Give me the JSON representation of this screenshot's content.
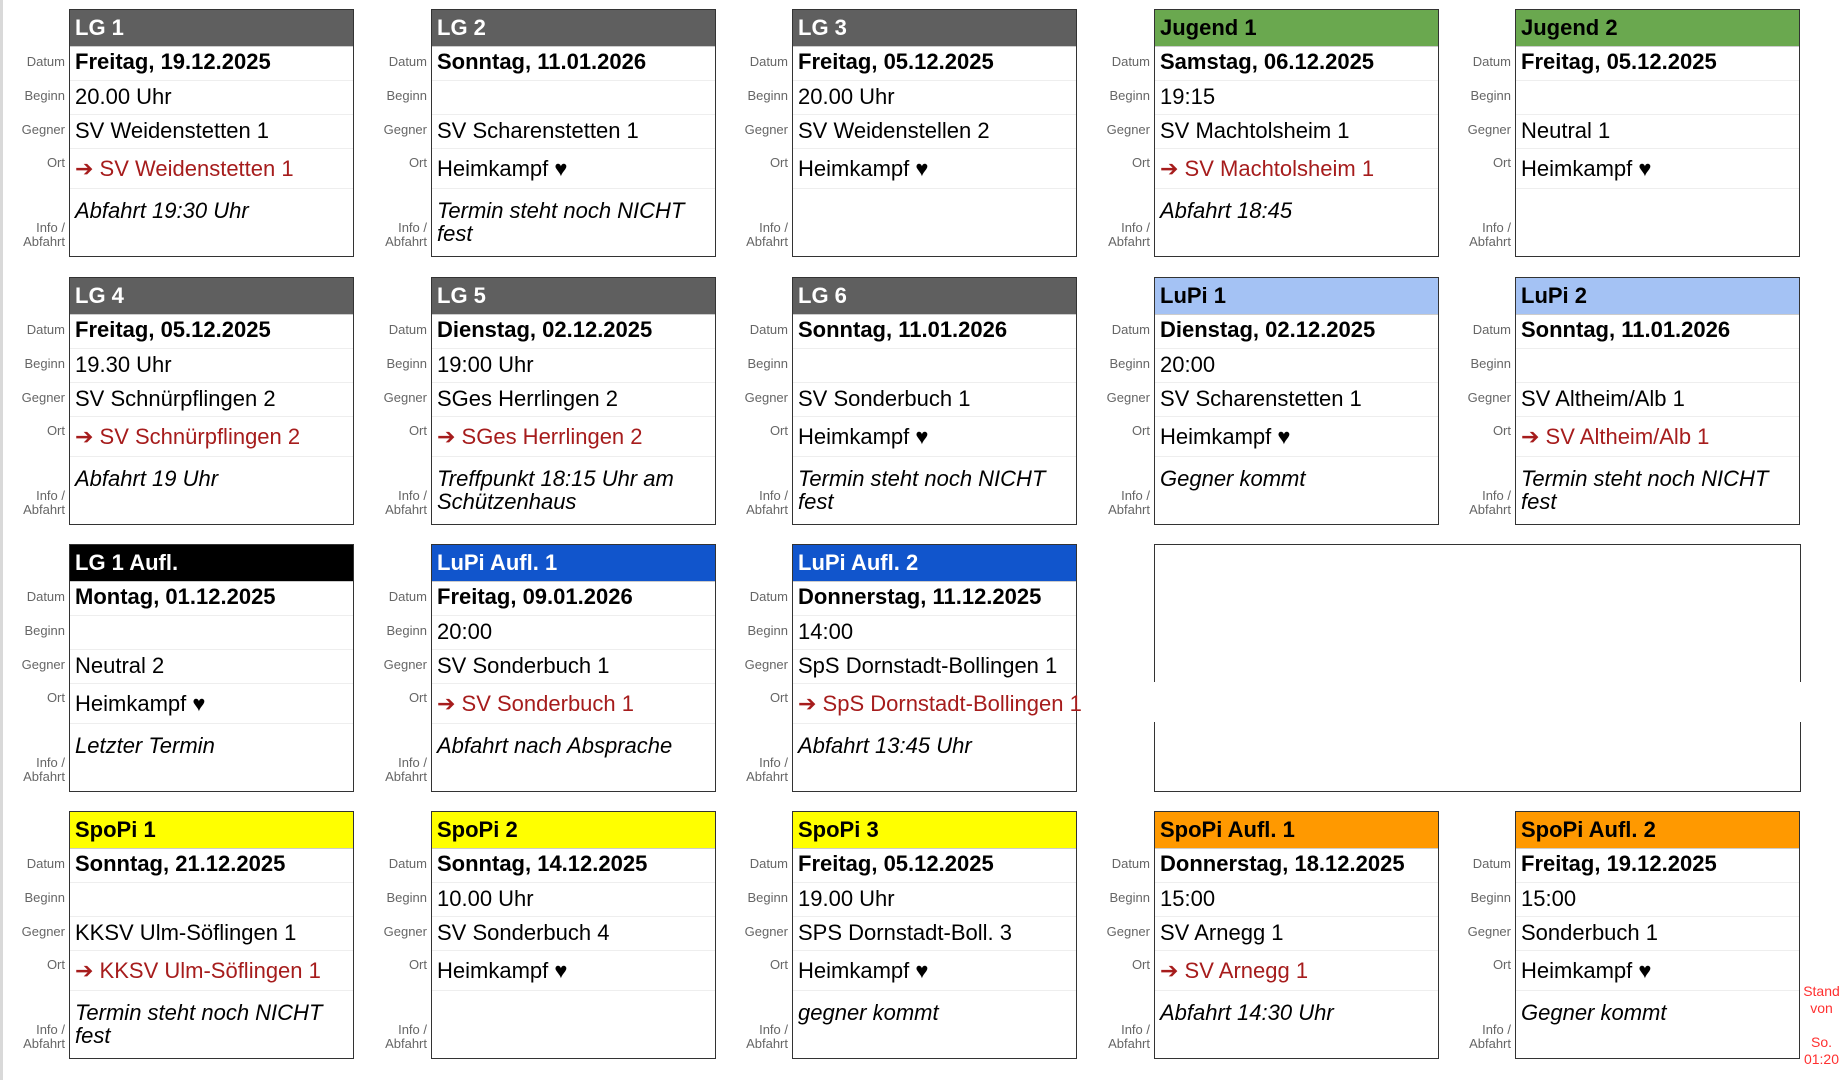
{
  "labels": {
    "datum": "Datum",
    "beginn": "Beginn",
    "gegner": "Gegner",
    "ort": "Ort",
    "info_1": "Info /",
    "info_2": "Abfahrt"
  },
  "colors": {
    "gray": "#5f5f5f",
    "green": "#6aa84f",
    "lightblue": "#a4c2f4",
    "black": "#000000",
    "blue": "#1155cc",
    "yellow": "#ffff00",
    "orange": "#ff9900",
    "away_text": "#a61c1c"
  },
  "cards": [
    {
      "team": "LG 1",
      "header_color": "gray",
      "header_text": "#ffffff",
      "date": "Freitag, 19.12.2025",
      "time": "20.00 Uhr",
      "opponent": "SV Weidenstetten 1",
      "location": "➔ SV Weidenstetten 1",
      "away": true,
      "info": "Abfahrt 19:30 Uhr"
    },
    {
      "team": "LG 2",
      "header_color": "gray",
      "header_text": "#ffffff",
      "date": "Sonntag, 11.01.2026",
      "time": "",
      "opponent": "SV Scharenstetten 1",
      "location": "Heimkampf ♥",
      "away": false,
      "info": "Termin steht noch NICHT fest"
    },
    {
      "team": "LG 3",
      "header_color": "gray",
      "header_text": "#ffffff",
      "date": "Freitag, 05.12.2025",
      "time": "20.00 Uhr",
      "opponent": "SV Weidenstellen 2",
      "location": "Heimkampf ♥",
      "away": false,
      "info": ""
    },
    {
      "team": "Jugend 1",
      "header_color": "green",
      "header_text": "#000000",
      "date": "Samstag, 06.12.2025",
      "time": "19:15",
      "opponent": "SV Machtolsheim 1",
      "location": "➔ SV Machtolsheim 1",
      "away": true,
      "info": "Abfahrt 18:45"
    },
    {
      "team": "Jugend 2",
      "header_color": "green",
      "header_text": "#000000",
      "date": "Freitag, 05.12.2025",
      "time": "",
      "opponent": "Neutral 1",
      "location": "Heimkampf ♥",
      "away": false,
      "info": ""
    },
    {
      "team": "LG 4",
      "header_color": "gray",
      "header_text": "#ffffff",
      "date": "Freitag, 05.12.2025",
      "time": "19.30 Uhr",
      "opponent": "SV Schnürpflingen 2",
      "location": "➔ SV Schnürpflingen 2",
      "away": true,
      "info": "Abfahrt 19 Uhr"
    },
    {
      "team": "LG 5",
      "header_color": "gray",
      "header_text": "#ffffff",
      "date": "Dienstag, 02.12.2025",
      "time": "19:00 Uhr",
      "opponent": "SGes Herrlingen 2",
      "location": "➔ SGes Herrlingen 2",
      "away": true,
      "info": "Treffpunkt 18:15 Uhr am Schützenhaus"
    },
    {
      "team": "LG 6",
      "header_color": "gray",
      "header_text": "#ffffff",
      "date": "Sonntag, 11.01.2026",
      "time": "",
      "opponent": "SV Sonderbuch 1",
      "location": "Heimkampf ♥",
      "away": false,
      "info": "Termin steht noch NICHT fest"
    },
    {
      "team": "LuPi 1",
      "header_color": "lightblue",
      "header_text": "#000000",
      "date": "Dienstag, 02.12.2025",
      "time": "20:00",
      "opponent": "SV Scharenstetten 1",
      "location": "Heimkampf ♥",
      "away": false,
      "info": "Gegner kommt"
    },
    {
      "team": "LuPi 2",
      "header_color": "lightblue",
      "header_text": "#000000",
      "date": "Sonntag, 11.01.2026",
      "time": "",
      "opponent": "SV Altheim/Alb 1",
      "location": "➔ SV Altheim/Alb 1",
      "away": true,
      "info": "Termin steht noch NICHT fest"
    },
    {
      "team": "LG 1 Aufl.",
      "header_color": "black",
      "header_text": "#ffffff",
      "date": "Montag, 01.12.2025",
      "time": "",
      "opponent": "Neutral 2",
      "location": "Heimkampf ♥",
      "away": false,
      "info": "Letzter Termin"
    },
    {
      "team": "LuPi Aufl. 1",
      "header_color": "blue",
      "header_text": "#ffffff",
      "date": "Freitag, 09.01.2026",
      "time": "20:00",
      "opponent": "SV Sonderbuch 1",
      "location": "➔ SV Sonderbuch 1",
      "away": true,
      "info": "Abfahrt nach Absprache"
    },
    {
      "team": "LuPi Aufl. 2",
      "header_color": "blue",
      "header_text": "#ffffff",
      "date": "Donnerstag, 11.12.2025",
      "time": "14:00",
      "opponent": "SpS Dornstadt-Bollingen 1",
      "location": "➔ SpS Dornstadt-Bollingen 1",
      "away": true,
      "info": "Abfahrt 13:45 Uhr"
    },
    null,
    null,
    {
      "team": "SpoPi 1",
      "header_color": "yellow",
      "header_text": "#000000",
      "date": "Sonntag, 21.12.2025",
      "time": "",
      "opponent": "KKSV Ulm-Söflingen 1",
      "location": "➔ KKSV Ulm-Söflingen 1",
      "away": true,
      "info": "Termin steht noch NICHT fest"
    },
    {
      "team": "SpoPi 2",
      "header_color": "yellow",
      "header_text": "#000000",
      "date": "Sonntag, 14.12.2025",
      "time": "10.00 Uhr",
      "opponent": "SV Sonderbuch 4",
      "location": "Heimkampf ♥",
      "away": false,
      "info": ""
    },
    {
      "team": "SpoPi 3",
      "header_color": "yellow",
      "header_text": "#000000",
      "date": "Freitag, 05.12.2025",
      "time": "19.00 Uhr",
      "opponent": "SPS Dornstadt-Boll. 3",
      "location": "Heimkampf ♥",
      "away": false,
      "info": "gegner kommt"
    },
    {
      "team": "SpoPi Aufl. 1",
      "header_color": "orange",
      "header_text": "#000000",
      "date": "Donnerstag, 18.12.2025",
      "time": "15:00",
      "opponent": "SV Arnegg 1",
      "location": "➔ SV Arnegg 1",
      "away": true,
      "info": "Abfahrt 14:30 Uhr"
    },
    {
      "team": "SpoPi Aufl. 2",
      "header_color": "orange",
      "header_text": "#000000",
      "date": "Freitag, 19.12.2025",
      "time": "15:00",
      "opponent": "Sonderbuch 1",
      "location": "Heimkampf ♥",
      "away": false,
      "info": "Gegner kommt"
    }
  ],
  "stand": {
    "line1": "Stand",
    "line2": "von",
    "line3": "So.",
    "line4": "01:20"
  }
}
